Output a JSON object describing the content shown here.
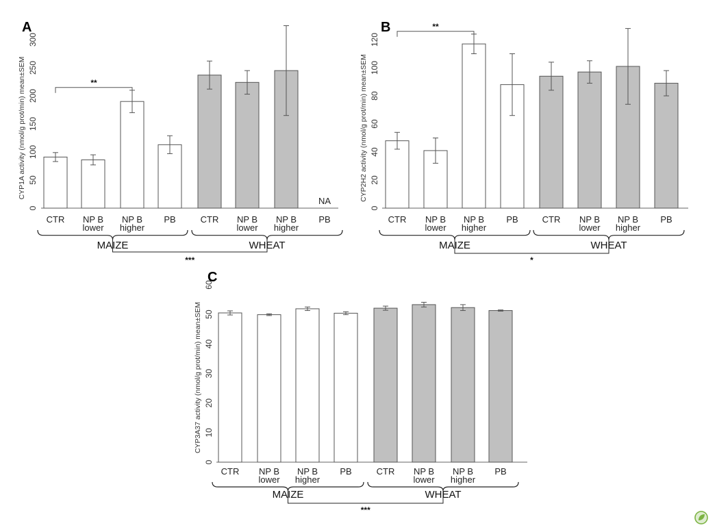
{
  "chart_data": [
    {
      "panel": "A",
      "type": "bar",
      "ylabel": "CYP1A activity (nmol/g prot/min) mean±SEM",
      "ylim": [
        0,
        300
      ],
      "yticks": [
        "0",
        "50",
        "100",
        "150",
        "200",
        "250",
        "300"
      ],
      "categories": [
        [
          "CTR"
        ],
        [
          "NP B",
          "lower"
        ],
        [
          "NP B",
          "higher"
        ],
        [
          "PB"
        ],
        [
          "CTR"
        ],
        [
          "NP B",
          "lower"
        ],
        [
          "NP B",
          "higher"
        ],
        [
          "PB"
        ]
      ],
      "groups": [
        "MAIZE",
        "WHEAT"
      ],
      "values": [
        91,
        86,
        190,
        113,
        237,
        224,
        245,
        null
      ],
      "errors": [
        8,
        9,
        20,
        16,
        25,
        21,
        80,
        null
      ],
      "fills": [
        "#ffffff",
        "#ffffff",
        "#ffffff",
        "#ffffff",
        "#c0c0c0",
        "#c0c0c0",
        "#c0c0c0",
        "#c0c0c0"
      ],
      "missing_label": "NA",
      "significance": {
        "label": "**",
        "from": 0,
        "to": 2
      },
      "group_significance": "***"
    },
    {
      "panel": "B",
      "type": "bar",
      "ylabel": "CYP2H2 activity (nmol/g prot/min) mean±SEM",
      "ylim": [
        0,
        120
      ],
      "yticks": [
        "0",
        "20",
        "40",
        "60",
        "80",
        "100",
        "120"
      ],
      "categories": [
        [
          "CTR"
        ],
        [
          "NP B",
          "lower"
        ],
        [
          "NP B",
          "higher"
        ],
        [
          "PB"
        ],
        [
          "CTR"
        ],
        [
          "NP B",
          "lower"
        ],
        [
          "NP B",
          "higher"
        ],
        [
          "PB"
        ]
      ],
      "groups": [
        "MAIZE",
        "WHEAT"
      ],
      "values": [
        48,
        41,
        117,
        88,
        94,
        97,
        101,
        89
      ],
      "errors": [
        6,
        9,
        7,
        22,
        10,
        8,
        27,
        9
      ],
      "fills": [
        "#ffffff",
        "#ffffff",
        "#ffffff",
        "#ffffff",
        "#c0c0c0",
        "#c0c0c0",
        "#c0c0c0",
        "#c0c0c0"
      ],
      "significance": {
        "label": "**",
        "from": 0,
        "to": 2
      },
      "group_significance": "*"
    },
    {
      "panel": "C",
      "type": "bar",
      "ylabel": "CYP3A37 activity (nmol/g prot/min) mean±SEM",
      "ylim": [
        0,
        60
      ],
      "yticks": [
        "0",
        "10",
        "20",
        "30",
        "40",
        "50",
        "60"
      ],
      "categories": [
        [
          "CTR"
        ],
        [
          "NP B",
          "lower"
        ],
        [
          "NP B",
          "higher"
        ],
        [
          "PB"
        ],
        [
          "CTR"
        ],
        [
          "NP B",
          "lower"
        ],
        [
          "NP B",
          "higher"
        ],
        [
          "PB"
        ]
      ],
      "groups": [
        "MAIZE",
        "WHEAT"
      ],
      "values": [
        50.5,
        49.9,
        51.9,
        50.4,
        52.1,
        53.3,
        52.3,
        51.3
      ],
      "errors": [
        0.7,
        0.3,
        0.6,
        0.5,
        0.7,
        0.8,
        1.0,
        0.2
      ],
      "fills": [
        "#ffffff",
        "#ffffff",
        "#ffffff",
        "#ffffff",
        "#c0c0c0",
        "#c0c0c0",
        "#c0c0c0",
        "#c0c0c0"
      ],
      "group_significance": "***"
    }
  ],
  "colors": {
    "maize_fill": "#ffffff",
    "wheat_fill": "#c0c0c0",
    "outline": "#555555"
  },
  "corner_icon": "leaf-badge-icon"
}
